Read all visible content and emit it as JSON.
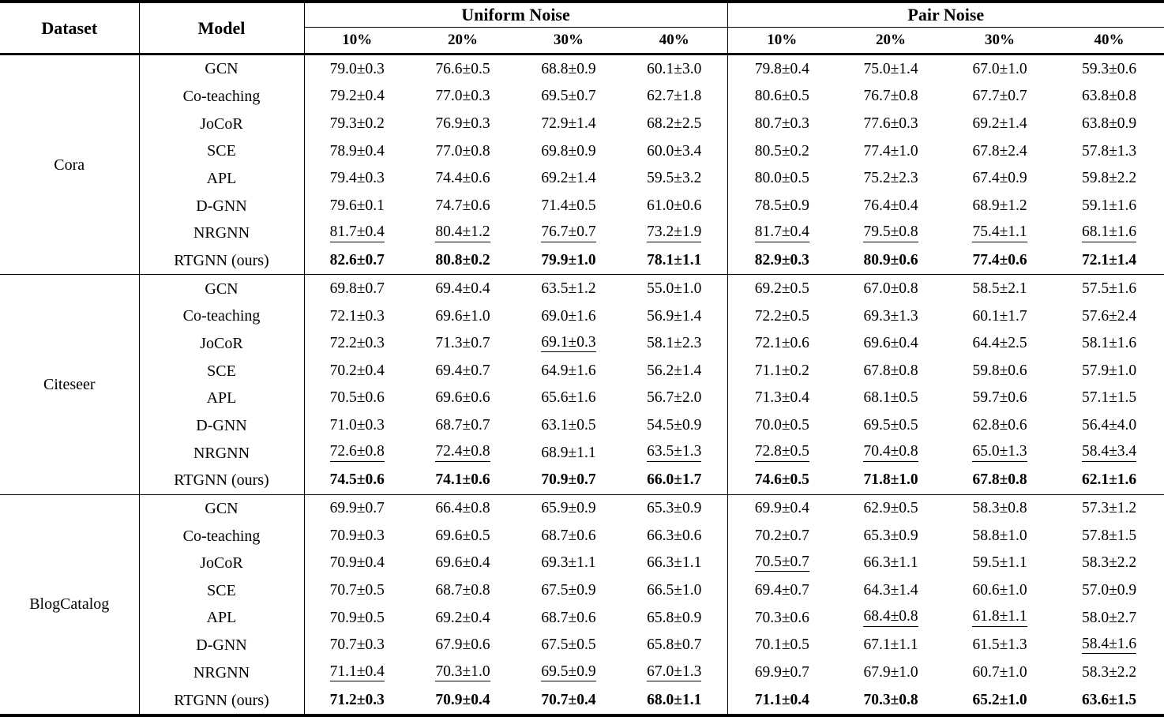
{
  "table": {
    "col_headers": {
      "dataset": "Dataset",
      "model": "Model",
      "groups": [
        {
          "label": "Uniform Noise",
          "levels": [
            "10%",
            "20%",
            "30%",
            "40%"
          ]
        },
        {
          "label": "Pair Noise",
          "levels": [
            "10%",
            "20%",
            "30%",
            "40%"
          ]
        }
      ]
    },
    "style_legend": {
      ".": "normal",
      "u": "underlined (second best)",
      "b": "bold (best)"
    },
    "blocks": [
      {
        "dataset": "Cora",
        "rows": [
          {
            "model": "GCN",
            "cells": [
              "79.0±0.3",
              "76.6±0.5",
              "68.8±0.9",
              "60.1±3.0",
              "79.8±0.4",
              "75.0±1.4",
              "67.0±1.0",
              "59.3±0.6"
            ],
            "styles": "........"
          },
          {
            "model": "Co-teaching",
            "cells": [
              "79.2±0.4",
              "77.0±0.3",
              "69.5±0.7",
              "62.7±1.8",
              "80.6±0.5",
              "76.7±0.8",
              "67.7±0.7",
              "63.8±0.8"
            ],
            "styles": "........"
          },
          {
            "model": "JoCoR",
            "cells": [
              "79.3±0.2",
              "76.9±0.3",
              "72.9±1.4",
              "68.2±2.5",
              "80.7±0.3",
              "77.6±0.3",
              "69.2±1.4",
              "63.8±0.9"
            ],
            "styles": "........"
          },
          {
            "model": "SCE",
            "cells": [
              "78.9±0.4",
              "77.0±0.8",
              "69.8±0.9",
              "60.0±3.4",
              "80.5±0.2",
              "77.4±1.0",
              "67.8±2.4",
              "57.8±1.3"
            ],
            "styles": "........"
          },
          {
            "model": "APL",
            "cells": [
              "79.4±0.3",
              "74.4±0.6",
              "69.2±1.4",
              "59.5±3.2",
              "80.0±0.5",
              "75.2±2.3",
              "67.4±0.9",
              "59.8±2.2"
            ],
            "styles": "........"
          },
          {
            "model": "D-GNN",
            "cells": [
              "79.6±0.1",
              "74.7±0.6",
              "71.4±0.5",
              "61.0±0.6",
              "78.5±0.9",
              "76.4±0.4",
              "68.9±1.2",
              "59.1±1.6"
            ],
            "styles": "........"
          },
          {
            "model": "NRGNN",
            "cells": [
              "81.7±0.4",
              "80.4±1.2",
              "76.7±0.7",
              "73.2±1.9",
              "81.7±0.4",
              "79.5±0.8",
              "75.4±1.1",
              "68.1±1.6"
            ],
            "styles": "uuuuuuuu"
          },
          {
            "model": "RTGNN (ours)",
            "cells": [
              "82.6±0.7",
              "80.8±0.2",
              "79.9±1.0",
              "78.1±1.1",
              "82.9±0.3",
              "80.9±0.6",
              "77.4±0.6",
              "72.1±1.4"
            ],
            "styles": "bbbbbbbb"
          }
        ]
      },
      {
        "dataset": "Citeseer",
        "rows": [
          {
            "model": "GCN",
            "cells": [
              "69.8±0.7",
              "69.4±0.4",
              "63.5±1.2",
              "55.0±1.0",
              "69.2±0.5",
              "67.0±0.8",
              "58.5±2.1",
              "57.5±1.6"
            ],
            "styles": "........"
          },
          {
            "model": "Co-teaching",
            "cells": [
              "72.1±0.3",
              "69.6±1.0",
              "69.0±1.6",
              "56.9±1.4",
              "72.2±0.5",
              "69.3±1.3",
              "60.1±1.7",
              "57.6±2.4"
            ],
            "styles": "........"
          },
          {
            "model": "JoCoR",
            "cells": [
              "72.2±0.3",
              "71.3±0.7",
              "69.1±0.3",
              "58.1±2.3",
              "72.1±0.6",
              "69.6±0.4",
              "64.4±2.5",
              "58.1±1.6"
            ],
            "styles": "..u....."
          },
          {
            "model": "SCE",
            "cells": [
              "70.2±0.4",
              "69.4±0.7",
              "64.9±1.6",
              "56.2±1.4",
              "71.1±0.2",
              "67.8±0.8",
              "59.8±0.6",
              "57.9±1.0"
            ],
            "styles": "........"
          },
          {
            "model": "APL",
            "cells": [
              "70.5±0.6",
              "69.6±0.6",
              "65.6±1.6",
              "56.7±2.0",
              "71.3±0.4",
              "68.1±0.5",
              "59.7±0.6",
              "57.1±1.5"
            ],
            "styles": "........"
          },
          {
            "model": "D-GNN",
            "cells": [
              "71.0±0.3",
              "68.7±0.7",
              "63.1±0.5",
              "54.5±0.9",
              "70.0±0.5",
              "69.5±0.5",
              "62.8±0.6",
              "56.4±4.0"
            ],
            "styles": "........"
          },
          {
            "model": "NRGNN",
            "cells": [
              "72.6±0.8",
              "72.4±0.8",
              "68.9±1.1",
              "63.5±1.3",
              "72.8±0.5",
              "70.4±0.8",
              "65.0±1.3",
              "58.4±3.4"
            ],
            "styles": "uu.uuuuu"
          },
          {
            "model": "RTGNN (ours)",
            "cells": [
              "74.5±0.6",
              "74.1±0.6",
              "70.9±0.7",
              "66.0±1.7",
              "74.6±0.5",
              "71.8±1.0",
              "67.8±0.8",
              "62.1±1.6"
            ],
            "styles": "bbbbbbbb"
          }
        ]
      },
      {
        "dataset": "BlogCatalog",
        "rows": [
          {
            "model": "GCN",
            "cells": [
              "69.9±0.7",
              "66.4±0.8",
              "65.9±0.9",
              "65.3±0.9",
              "69.9±0.4",
              "62.9±0.5",
              "58.3±0.8",
              "57.3±1.2"
            ],
            "styles": "........"
          },
          {
            "model": "Co-teaching",
            "cells": [
              "70.9±0.3",
              "69.6±0.5",
              "68.7±0.6",
              "66.3±0.6",
              "70.2±0.7",
              "65.3±0.9",
              "58.8±1.0",
              "57.8±1.5"
            ],
            "styles": "........"
          },
          {
            "model": "JoCoR",
            "cells": [
              "70.9±0.4",
              "69.6±0.4",
              "69.3±1.1",
              "66.3±1.1",
              "70.5±0.7",
              "66.3±1.1",
              "59.5±1.1",
              "58.3±2.2"
            ],
            "styles": "....u..."
          },
          {
            "model": "SCE",
            "cells": [
              "70.7±0.5",
              "68.7±0.8",
              "67.5±0.9",
              "66.5±1.0",
              "69.4±0.7",
              "64.3±1.4",
              "60.6±1.0",
              "57.0±0.9"
            ],
            "styles": "........"
          },
          {
            "model": "APL",
            "cells": [
              "70.9±0.5",
              "69.2±0.4",
              "68.7±0.6",
              "65.8±0.9",
              "70.3±0.6",
              "68.4±0.8",
              "61.8±1.1",
              "58.0±2.7"
            ],
            "styles": ".....uu."
          },
          {
            "model": "D-GNN",
            "cells": [
              "70.7±0.3",
              "67.9±0.6",
              "67.5±0.5",
              "65.8±0.7",
              "70.1±0.5",
              "67.1±1.1",
              "61.5±1.3",
              "58.4±1.6"
            ],
            "styles": ".......u"
          },
          {
            "model": "NRGNN",
            "cells": [
              "71.1±0.4",
              "70.3±1.0",
              "69.5±0.9",
              "67.0±1.3",
              "69.9±0.7",
              "67.9±1.0",
              "60.7±1.0",
              "58.3±2.2"
            ],
            "styles": "uuuu...."
          },
          {
            "model": "RTGNN (ours)",
            "cells": [
              "71.2±0.3",
              "70.9±0.4",
              "70.7±0.4",
              "68.0±1.1",
              "71.1±0.4",
              "70.3±0.8",
              "65.2±1.0",
              "63.6±1.5"
            ],
            "styles": "bbbbbbbb"
          }
        ]
      }
    ]
  }
}
